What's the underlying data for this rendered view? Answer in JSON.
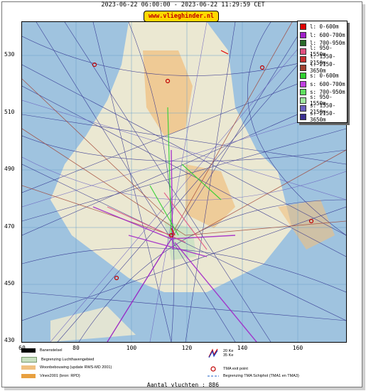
{
  "header": {
    "title": "2023-06-22 06:00:00 - 2023-06-22 11:29:59 CET",
    "brand": "www.vlieghinder.nl"
  },
  "axes": {
    "y_ticks": [
      "530",
      "510",
      "490",
      "470",
      "450",
      "430"
    ],
    "x_ticks": [
      "60",
      "80",
      "100",
      "120",
      "140",
      "160"
    ]
  },
  "legend": {
    "items": [
      {
        "label": "l: 0-600m",
        "color": "#e00000"
      },
      {
        "label": "l: 600-700m",
        "color": "#a020c8"
      },
      {
        "label": "l: 700-950m",
        "color": "#2a6a2a"
      },
      {
        "label": "l: 950-1550m",
        "color": "#e05080"
      },
      {
        "label": "l: 1550-2150m",
        "color": "#c83030"
      },
      {
        "label": "l: 2150-3650m",
        "color": "#a04030"
      },
      {
        "label": "s: 0-600m",
        "color": "#30d030"
      },
      {
        "label": "s: 600-700m",
        "color": "#c040e0"
      },
      {
        "label": "s: 700-950m",
        "color": "#60e060"
      },
      {
        "label": "s: 950-1550m",
        "color": "#a0e8a0"
      },
      {
        "label": "s: 1550-2150m",
        "color": "#6a60c0"
      },
      {
        "label": "s: 2150-3650m",
        "color": "#3a3090"
      }
    ]
  },
  "bottom_legend": {
    "left": [
      {
        "label": "Banenstelsel",
        "color": "#000000"
      },
      {
        "label": "Begrenzing Luchthavengebied",
        "color": "#c8e0c0"
      },
      {
        "label": "Woonbebouwing (update RWS-MD 2001)",
        "color": "#f0c080"
      },
      {
        "label": "Vinex2001 (bron: RPD)",
        "color": "#e8a040"
      }
    ],
    "right": [
      {
        "label": "20 Ke\n35 Ke"
      },
      {
        "label": "TMA exit point"
      },
      {
        "label": "Begrenzing TMA Schiphol  (TMA1 en TMA3)"
      }
    ]
  },
  "footer": {
    "count_label": "Aantal vluchten : 886"
  }
}
